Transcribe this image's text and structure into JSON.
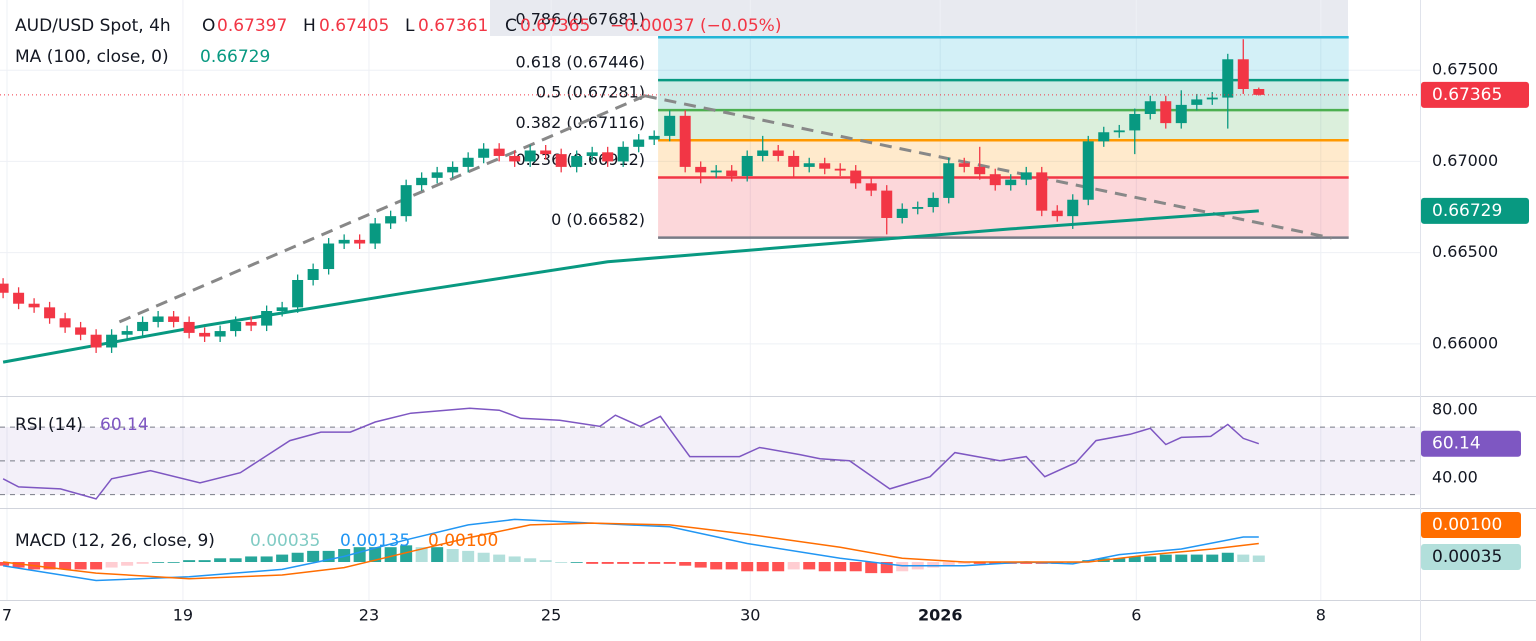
{
  "chart_data": [
    {
      "type": "candlestick",
      "title": "AUD/USD Spot, 4h",
      "ohlc": [
        {
          "label": "O",
          "value": 0.67397
        },
        {
          "label": "H",
          "value": 0.67405
        },
        {
          "label": "L",
          "value": 0.67361
        },
        {
          "label": "C",
          "value": 0.67365
        }
      ],
      "change": "−0.00037 (−0.05%)",
      "open": [
        0.6633,
        0.6628,
        0.6622,
        0.662,
        0.6614,
        0.6609,
        0.6605,
        0.6598,
        0.6605,
        0.6607,
        0.6612,
        0.6615,
        0.6612,
        0.6606,
        0.6604,
        0.6607,
        0.6612,
        0.661,
        0.6618,
        0.662,
        0.6635,
        0.6641,
        0.6655,
        0.6657,
        0.6655,
        0.6666,
        0.667,
        0.6687,
        0.6691,
        0.6694,
        0.6697,
        0.6702,
        0.6707,
        0.6703,
        0.67,
        0.6706,
        0.6704,
        0.6697,
        0.6703,
        0.6705,
        0.67,
        0.6708,
        0.6712,
        0.6714,
        0.6725,
        0.6697,
        0.6694,
        0.6695,
        0.6692,
        0.6703,
        0.6706,
        0.6703,
        0.6697,
        0.6699,
        0.6696,
        0.6695,
        0.6688,
        0.6684,
        0.6669,
        0.6674,
        0.6675,
        0.668,
        0.6699,
        0.6697,
        0.6693,
        0.6687,
        0.669,
        0.6694,
        0.6673,
        0.667,
        0.6679,
        0.6711,
        0.6716,
        0.6717,
        0.6726,
        0.6733,
        0.6721,
        0.6731,
        0.6734,
        0.6735,
        0.6756,
        0.67397
      ],
      "high": [
        0.6636,
        0.6631,
        0.6625,
        0.6623,
        0.6617,
        0.6612,
        0.6608,
        0.6608,
        0.661,
        0.6615,
        0.6618,
        0.6618,
        0.6615,
        0.6609,
        0.661,
        0.6615,
        0.6615,
        0.6621,
        0.6623,
        0.6638,
        0.6644,
        0.6658,
        0.666,
        0.666,
        0.6669,
        0.6673,
        0.669,
        0.6694,
        0.6697,
        0.67,
        0.6705,
        0.671,
        0.671,
        0.6706,
        0.6709,
        0.6709,
        0.6707,
        0.6706,
        0.6708,
        0.6708,
        0.6711,
        0.6715,
        0.6717,
        0.6728,
        0.6728,
        0.67,
        0.6698,
        0.6698,
        0.6706,
        0.6714,
        0.6709,
        0.6706,
        0.6702,
        0.6702,
        0.6699,
        0.6698,
        0.6691,
        0.6687,
        0.6677,
        0.6678,
        0.6683,
        0.6702,
        0.6702,
        0.6708,
        0.6696,
        0.6693,
        0.6697,
        0.6697,
        0.6676,
        0.6682,
        0.6714,
        0.6719,
        0.672,
        0.6729,
        0.6736,
        0.6736,
        0.6739,
        0.6737,
        0.6738,
        0.6759,
        0.6767,
        0.67405
      ],
      "low": [
        0.6625,
        0.6619,
        0.6617,
        0.6611,
        0.6606,
        0.6602,
        0.6595,
        0.6595,
        0.6602,
        0.6604,
        0.6609,
        0.6609,
        0.6603,
        0.6601,
        0.6601,
        0.6604,
        0.6607,
        0.6607,
        0.6615,
        0.6617,
        0.6632,
        0.6638,
        0.6652,
        0.6652,
        0.6652,
        0.6663,
        0.6667,
        0.6684,
        0.6688,
        0.6691,
        0.6694,
        0.6699,
        0.67,
        0.6697,
        0.6697,
        0.6701,
        0.6694,
        0.6694,
        0.67,
        0.6697,
        0.6697,
        0.6705,
        0.6709,
        0.6711,
        0.6694,
        0.6688,
        0.6691,
        0.6689,
        0.6689,
        0.67,
        0.67,
        0.6691,
        0.6694,
        0.6693,
        0.6692,
        0.6685,
        0.6681,
        0.666,
        0.6666,
        0.6671,
        0.6672,
        0.6677,
        0.6694,
        0.669,
        0.6684,
        0.6684,
        0.6687,
        0.667,
        0.6667,
        0.6663,
        0.6676,
        0.6708,
        0.6713,
        0.6704,
        0.6723,
        0.6718,
        0.6718,
        0.6728,
        0.6731,
        0.6718,
        0.6737,
        0.67361
      ],
      "close": [
        0.6628,
        0.6622,
        0.662,
        0.6614,
        0.6609,
        0.6605,
        0.6598,
        0.6605,
        0.6607,
        0.6612,
        0.6615,
        0.6612,
        0.6606,
        0.6604,
        0.6607,
        0.6612,
        0.661,
        0.6618,
        0.662,
        0.6635,
        0.6641,
        0.6655,
        0.6657,
        0.6655,
        0.6666,
        0.667,
        0.6687,
        0.6691,
        0.6694,
        0.6697,
        0.6702,
        0.6707,
        0.6703,
        0.67,
        0.6706,
        0.6704,
        0.6697,
        0.6703,
        0.6705,
        0.67,
        0.6708,
        0.6712,
        0.6714,
        0.6725,
        0.6697,
        0.6694,
        0.6695,
        0.6692,
        0.6703,
        0.6706,
        0.6703,
        0.6697,
        0.6699,
        0.6696,
        0.6695,
        0.6688,
        0.6684,
        0.6669,
        0.6674,
        0.6675,
        0.668,
        0.6699,
        0.6697,
        0.6693,
        0.6687,
        0.669,
        0.6694,
        0.6673,
        0.667,
        0.6679,
        0.6711,
        0.6716,
        0.6717,
        0.6726,
        0.6733,
        0.6721,
        0.6731,
        0.6734,
        0.6735,
        0.6756,
        0.67397,
        0.67365
      ],
      "up_color": "#089981",
      "down_color": "#f23645",
      "ma": {
        "name": "MA (100, close, 0)",
        "value": 0.66729,
        "color": "#089981",
        "x": [
          0,
          13,
          26,
          39,
          52,
          65,
          81
        ],
        "values": [
          0.659,
          0.661,
          0.6628,
          0.6645,
          0.6654,
          0.6663,
          0.66729
        ]
      },
      "fib": {
        "x_range": [
          42.25,
          86.8
        ],
        "levels": [
          {
            "label": "0.786 (0.67681)",
            "value": 0.67681,
            "color": "#22b5d6"
          },
          {
            "label": "0.618 (0.67446)",
            "value": 0.67446,
            "color": "#089981"
          },
          {
            "label": "0.5 (0.67281)",
            "value": 0.67281,
            "color": "#4caf50"
          },
          {
            "label": "0.382 (0.67116)",
            "value": 0.67116,
            "color": "#ff9800"
          },
          {
            "label": "0.236 (0.66912)",
            "value": 0.66912,
            "color": "#f23645"
          },
          {
            "label": "0 (0.66582)",
            "value": 0.66582,
            "color": "#787b86"
          }
        ]
      },
      "trendlines": [
        {
          "x": [
            7.5,
            41.4
          ],
          "values": [
            0.6612,
            0.6736
          ]
        },
        {
          "x": [
            41.4,
            85.7
          ],
          "values": [
            0.6736,
            0.6658
          ]
        }
      ],
      "trendline_color": "#888888",
      "xlim": [
        -0.2,
        91.4
      ],
      "xticks": [
        {
          "value": 0.25,
          "label": "7"
        },
        {
          "value": 11.6,
          "label": "19"
        },
        {
          "value": 23.6,
          "label": "23"
        },
        {
          "value": 35.35,
          "label": "25"
        },
        {
          "value": 48.2,
          "label": "30"
        },
        {
          "value": 60.45,
          "label": "2026",
          "bold": true
        },
        {
          "value": 73.1,
          "label": "6"
        },
        {
          "value": 85.0,
          "label": "8"
        }
      ],
      "ylim": [
        0.65714,
        0.67885
      ],
      "yticks": [
        {
          "value": 0.66,
          "label": "0.66000"
        },
        {
          "value": 0.665,
          "label": "0.66500"
        },
        {
          "value": 0.67,
          "label": "0.67000"
        },
        {
          "value": 0.675,
          "label": "0.67500"
        }
      ],
      "grid": true
    },
    {
      "type": "line",
      "title": "RSI (14)",
      "value": 60.14,
      "color": "#7e57c2",
      "x": [
        0,
        1,
        3.7,
        6,
        7,
        9.5,
        12.7,
        15.3,
        18.5,
        20.5,
        22.4,
        24,
        26.3,
        30.1,
        32,
        33.4,
        35.9,
        38.5,
        39.5,
        41.1,
        42.4,
        44.3,
        47.5,
        48.8,
        51.4,
        52.7,
        54.6,
        57.2,
        59.8,
        61.4,
        64.3,
        66,
        67.2,
        69.2,
        70.5,
        72.7,
        74,
        75,
        76,
        77.9,
        79,
        80,
        81
      ],
      "values": [
        39.4,
        34.6,
        33.4,
        27.5,
        39.4,
        44.2,
        37,
        43,
        62,
        67,
        67,
        73,
        78.2,
        81.2,
        80,
        75.2,
        74,
        70.4,
        77,
        70.4,
        76.4,
        52.5,
        52.5,
        57.9,
        53.7,
        51.3,
        50.1,
        33.4,
        40.6,
        54.9,
        50.1,
        52.5,
        40.6,
        49,
        62,
        65.7,
        69.3,
        59.7,
        63.9,
        64.5,
        71.6,
        63.3,
        60.14
      ],
      "levels": [
        70,
        50,
        30
      ],
      "band_color": "#7e57c2",
      "ylim": [
        22.1,
        87.8
      ],
      "yticks": [
        {
          "value": 80,
          "label": "80.00"
        },
        {
          "value": 40,
          "label": "40.00"
        }
      ]
    },
    {
      "type": "macd",
      "title": "MACD (12, 26, close, 9)",
      "histogram": {
        "value": 0.00035,
        "colors": [
          "#26a69a",
          "#b2dfdb",
          "#ff5252",
          "#ffcdd2"
        ],
        "values": [
          -0.0002,
          -0.0003,
          -0.0004,
          -0.0004,
          -0.0004,
          -0.0004,
          -0.0004,
          -0.0003,
          -0.0002,
          -0.0001,
          0.0,
          0.0,
          0.0001,
          0.0001,
          0.0002,
          0.0002,
          0.0003,
          0.0003,
          0.0004,
          0.0005,
          0.0006,
          0.0006,
          0.0007,
          0.0008,
          0.0008,
          0.0008,
          0.0009,
          0.0008,
          0.0008,
          0.0007,
          0.0006,
          0.0005,
          0.0004,
          0.0003,
          0.0002,
          0.0001,
          0.0,
          0.0,
          -0.0001,
          -0.0001,
          -0.0001,
          -0.0001,
          -0.0001,
          -0.0001,
          -0.0002,
          -0.0003,
          -0.0004,
          -0.0004,
          -0.0005,
          -0.0005,
          -0.0005,
          -0.0004,
          -0.0004,
          -0.0005,
          -0.0005,
          -0.0005,
          -0.0006,
          -0.0006,
          -0.0005,
          -0.0004,
          -0.0003,
          -0.0002,
          -0.0001,
          -0.0001,
          -0.0001,
          -0.0001,
          -0.0001,
          -0.0001,
          -0.0001,
          0.0,
          0.0001,
          0.0002,
          0.0002,
          0.0003,
          0.0003,
          0.0004,
          0.0004,
          0.0004,
          0.0004,
          0.0005,
          0.0004,
          0.00035
        ]
      },
      "macd": {
        "value": 0.00135,
        "color": "#2196f3",
        "x": [
          0,
          6,
          12,
          18,
          22,
          26,
          30,
          33,
          38,
          43,
          48,
          54,
          58,
          62,
          66,
          69,
          72,
          76,
          80,
          81
        ],
        "values": [
          -0.0002,
          -0.001,
          -0.0008,
          -0.0004,
          0.0003,
          0.0012,
          0.002,
          0.0023,
          0.0021,
          0.0019,
          0.001,
          0.0002,
          -0.0002,
          -0.0002,
          0.0,
          -0.0001,
          0.0004,
          0.0007,
          0.00135,
          0.00135
        ]
      },
      "signal": {
        "value": {
          "value": 0.001,
          "label": "0.00100"
        },
        "color": "#ff6d00",
        "x": [
          0,
          6,
          12,
          18,
          22,
          26,
          30,
          34,
          38,
          43,
          48,
          54,
          58,
          62,
          66,
          70,
          74,
          78,
          81
        ],
        "values": [
          0.0,
          -0.0006,
          -0.0009,
          -0.0007,
          -0.0003,
          0.0005,
          0.0013,
          0.002,
          0.0021,
          0.002,
          0.0015,
          0.0008,
          0.0002,
          0.0,
          0.0,
          0.0,
          0.0004,
          0.0007,
          0.001
        ]
      },
      "ylim": [
        -0.00205,
        0.00286
      ]
    }
  ]
}
